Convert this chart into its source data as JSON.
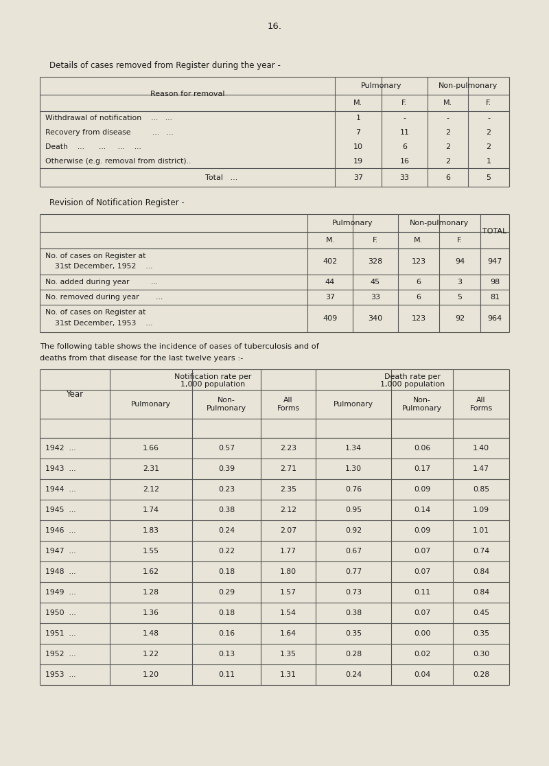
{
  "page_number": "16.",
  "bg_color": "#e8e4d8",
  "text_color": "#1a1a1a",
  "table1_title": "Details of cases removed from Register during the year -",
  "table1_rows": [
    [
      "Withdrawal of notification    ...   ...",
      "1",
      "-",
      "-",
      "-"
    ],
    [
      "Recovery from disease         ...   ...",
      "7",
      "11",
      "2",
      "2"
    ],
    [
      "Death    ...      ...     ...    ...",
      "10",
      "6",
      "2",
      "2"
    ],
    [
      "Otherwise (e.g. removal from district)..",
      "19",
      "16",
      "2",
      "1"
    ]
  ],
  "table1_total_row": [
    "Total   ...",
    "37",
    "33",
    "6",
    "5"
  ],
  "table2_title": "Revision of Notification Register -",
  "table2_rows": [
    [
      "No. of cases on Register at\n    31st December, 1952    ...",
      "402",
      "328",
      "123",
      "94",
      "947"
    ],
    [
      "No. added during year         ...",
      "44",
      "45",
      "6",
      "3",
      "98"
    ],
    [
      "No. removed during year       ...",
      "37",
      "33",
      "6",
      "5",
      "81"
    ],
    [
      "No. of cases on Register at\n    31st December, 1953    ...",
      "409",
      "340",
      "123",
      "92",
      "964"
    ]
  ],
  "table3_intro_line1": "The following table shows the incidence of oases of tuberculosis and of",
  "table3_intro_line2": "deaths from that disease for the last twelve years :-",
  "table3_data": [
    [
      "1942",
      "1.66",
      "0.57",
      "2.23",
      "1.34",
      "0.06",
      "1.40"
    ],
    [
      "1943",
      "2.31",
      "0.39",
      "2.71",
      "1.30",
      "0.17",
      "1.47"
    ],
    [
      "1944",
      "2.12",
      "0.23",
      "2.35",
      "0.76",
      "0.09",
      "0.85"
    ],
    [
      "1945",
      "1.74",
      "0.38",
      "2.12",
      "0.95",
      "0.14",
      "1.09"
    ],
    [
      "1946",
      "1.83",
      "0.24",
      "2.07",
      "0.92",
      "0.09",
      "1.01"
    ],
    [
      "1947",
      "1.55",
      "0.22",
      "1.77",
      "0.67",
      "0.07",
      "0.74"
    ],
    [
      "1948",
      "1.62",
      "0.18",
      "1.80",
      "0.77",
      "0.07",
      "0.84"
    ],
    [
      "1949",
      "1.28",
      "0.29",
      "1.57",
      "0.73",
      "0.11",
      "0.84"
    ],
    [
      "1950",
      "1.36",
      "0.18",
      "1.54",
      "0.38",
      "0.07",
      "0.45"
    ],
    [
      "1951",
      "1.48",
      "0.16",
      "1.64",
      "0.35",
      "0.00",
      "0.35"
    ],
    [
      "1952",
      "1.22",
      "0.13",
      "1.35",
      "0.28",
      "0.02",
      "0.30"
    ],
    [
      "1953",
      "1.20",
      "0.11",
      "1.31",
      "0.24",
      "0.04",
      "0.28"
    ]
  ]
}
